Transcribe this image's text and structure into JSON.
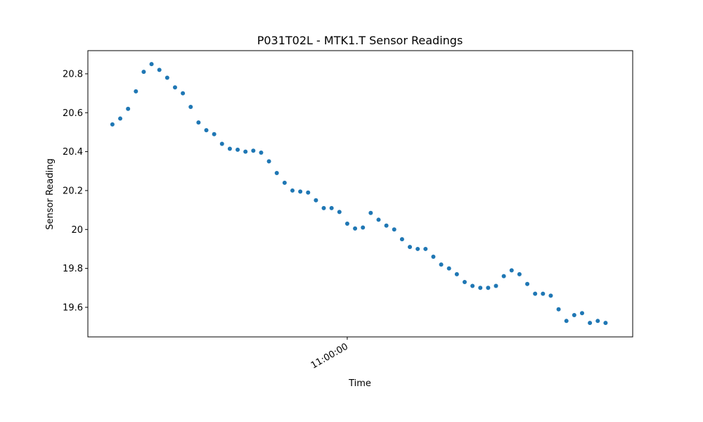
{
  "chart_data": {
    "type": "scatter",
    "title": "P031T02L - MTK1.T Sensor Readings",
    "x_label": "Time",
    "y_label": "Sensor Reading",
    "x": [
      "10:30:00",
      "10:31:00",
      "10:32:00",
      "10:33:00",
      "10:34:00",
      "10:35:00",
      "10:36:00",
      "10:37:00",
      "10:38:00",
      "10:39:00",
      "10:40:00",
      "10:41:00",
      "10:42:00",
      "10:43:00",
      "10:44:00",
      "10:45:00",
      "10:46:00",
      "10:47:00",
      "10:48:00",
      "10:49:00",
      "10:50:00",
      "10:51:00",
      "10:52:00",
      "10:53:00",
      "10:54:00",
      "10:55:00",
      "10:56:00",
      "10:57:00",
      "10:58:00",
      "10:59:00",
      "11:00:00",
      "11:01:00",
      "11:02:00",
      "11:03:00",
      "11:04:00",
      "11:05:00",
      "11:06:00",
      "11:07:00",
      "11:08:00",
      "11:09:00",
      "11:10:00",
      "11:11:00",
      "11:12:00",
      "11:13:00",
      "11:14:00",
      "11:15:00",
      "11:16:00",
      "11:17:00",
      "11:18:00",
      "11:19:00",
      "11:20:00",
      "11:21:00",
      "11:22:00",
      "11:23:00",
      "11:24:00",
      "11:25:00",
      "11:26:00",
      "11:27:00",
      "11:28:00",
      "11:29:00",
      "11:30:00",
      "11:31:00",
      "11:32:00",
      "11:33:00"
    ],
    "series": [
      {
        "color": "#1f77b4",
        "values": [
          20.54,
          20.57,
          20.62,
          20.71,
          20.81,
          20.85,
          20.82,
          20.78,
          20.73,
          20.7,
          20.63,
          20.55,
          20.51,
          20.49,
          20.44,
          20.415,
          20.41,
          20.4,
          20.405,
          20.395,
          20.35,
          20.29,
          20.24,
          20.2,
          20.195,
          20.19,
          20.15,
          20.11,
          20.11,
          20.09,
          20.03,
          20.005,
          20.01,
          20.085,
          20.05,
          20.02,
          20.0,
          19.95,
          19.91,
          19.9,
          19.9,
          19.86,
          19.82,
          19.8,
          19.77,
          19.73,
          19.71,
          19.7,
          19.7,
          19.71,
          19.76,
          19.79,
          19.77,
          19.72,
          19.67,
          19.67,
          19.66,
          19.59,
          19.53,
          19.56,
          19.57,
          19.52,
          19.53,
          19.52
        ]
      }
    ],
    "xlim": [
      "10:26:52",
      "11:36:28"
    ],
    "xticks": [
      "11:00:00"
    ],
    "ylim": [
      19.448,
      20.919
    ],
    "yticks": [
      19.6,
      19.8,
      20.0,
      20.2,
      20.4,
      20.6,
      20.8
    ]
  }
}
